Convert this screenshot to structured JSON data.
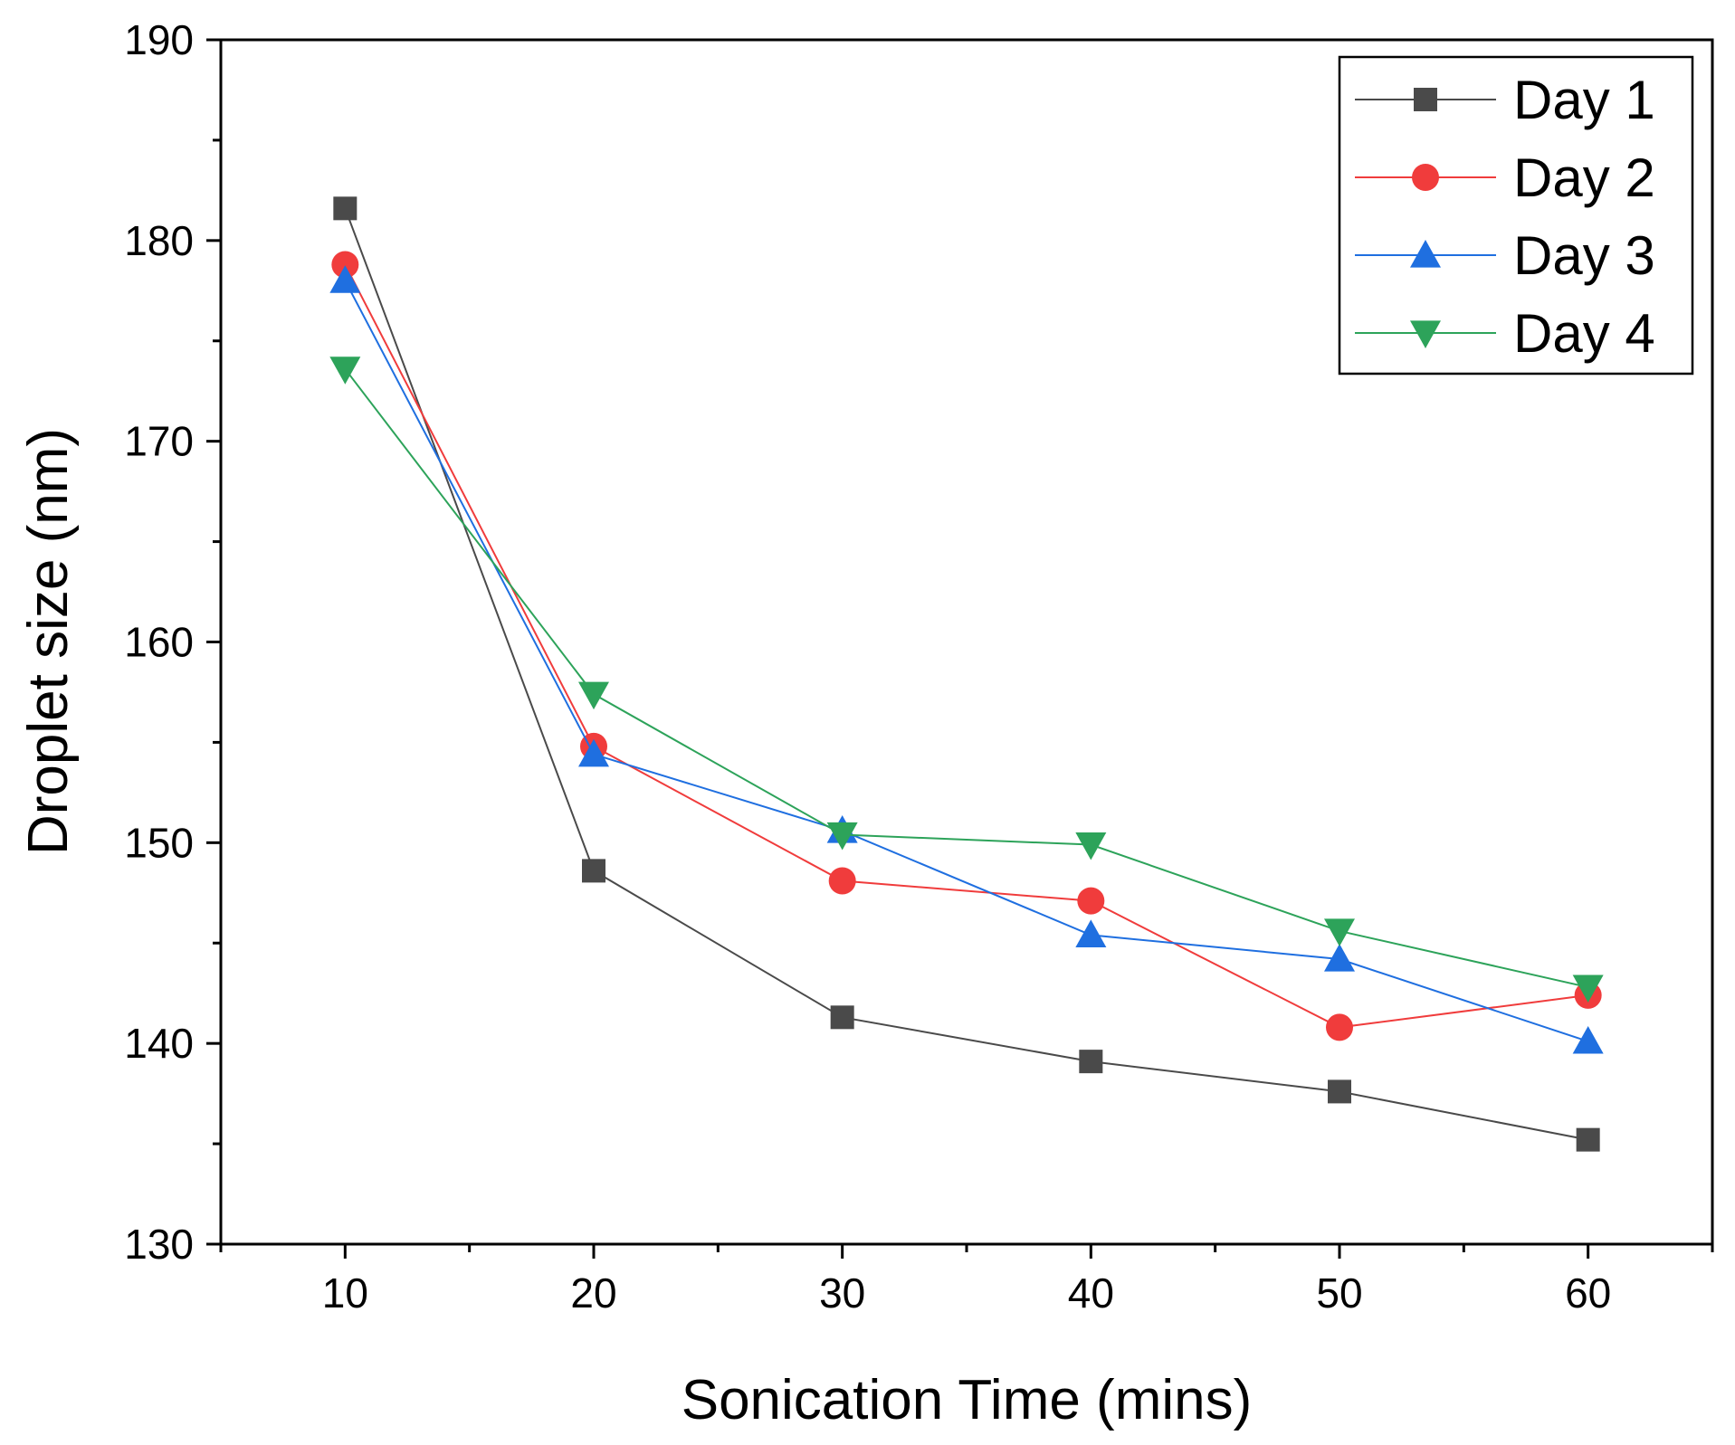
{
  "chart_data": {
    "type": "line",
    "title": "",
    "xlabel": "Sonication Time (mins)",
    "ylabel": "Droplet size (nm)",
    "x": [
      10,
      20,
      30,
      40,
      50,
      60
    ],
    "x_ticks": [
      "10",
      "20",
      "30",
      "40",
      "50",
      "60"
    ],
    "y_ticks": [
      "130",
      "140",
      "150",
      "160",
      "170",
      "180",
      "190"
    ],
    "xlim": [
      5,
      65
    ],
    "ylim": [
      130,
      190
    ],
    "grid": false,
    "legend_position": "top-right",
    "series": [
      {
        "name": "Day 1",
        "marker": "square",
        "color": "#4a4a4a",
        "values": [
          181.6,
          148.6,
          141.3,
          139.1,
          137.6,
          135.2
        ]
      },
      {
        "name": "Day 2",
        "marker": "circle",
        "color": "#f03c3c",
        "values": [
          178.8,
          154.8,
          148.1,
          147.1,
          140.8,
          142.4
        ]
      },
      {
        "name": "Day 3",
        "marker": "triangle-up",
        "color": "#1f6fe0",
        "values": [
          178.0,
          154.4,
          150.6,
          145.4,
          144.2,
          140.1
        ]
      },
      {
        "name": "Day 4",
        "marker": "triangle-down",
        "color": "#2da35a",
        "values": [
          173.6,
          157.4,
          150.4,
          149.9,
          145.6,
          142.8
        ]
      }
    ]
  }
}
